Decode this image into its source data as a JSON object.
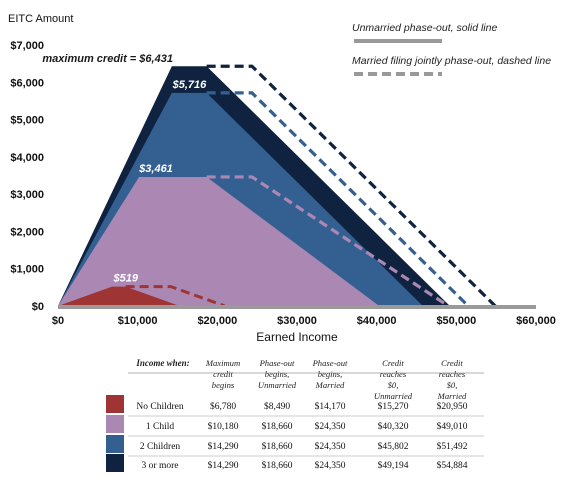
{
  "chart_data": {
    "type": "area",
    "ylabel": "EITC Amount",
    "xlabel": "Earned Income",
    "xlim": [
      0,
      60000
    ],
    "ylim": [
      0,
      7000
    ],
    "x_ticks": [
      0,
      10000,
      20000,
      30000,
      40000,
      50000,
      60000
    ],
    "x_tick_labels": [
      "$0",
      "$10,000",
      "$20,000",
      "$30,000",
      "$40,000",
      "$50,000",
      "$60,000"
    ],
    "y_ticks": [
      0,
      1000,
      2000,
      3000,
      4000,
      5000,
      6000,
      7000
    ],
    "y_tick_labels": [
      "$0",
      "$1,000",
      "$2,000",
      "$3,000",
      "$4,000",
      "$5,000",
      "$6,000",
      "$7,000"
    ],
    "grid": false,
    "legend": {
      "placement": "top-right",
      "items": [
        {
          "label": "Unmarried phase-out, solid line",
          "style": "solid",
          "color": "#999999"
        },
        {
          "label": "Married filing jointly phase-out, dashed line",
          "style": "dashed",
          "color": "#999999"
        }
      ]
    },
    "annotations": [
      {
        "text": "maximum credit = $6,431",
        "x": 10000,
        "y": 6431,
        "style": "dark"
      },
      {
        "text": "$5,716",
        "x": 16500,
        "y": 5716,
        "style": "light"
      },
      {
        "text": "$3,461",
        "x": 12300,
        "y": 3461,
        "style": "light"
      },
      {
        "text": "$519",
        "x": 8500,
        "y": 519,
        "style": "light"
      }
    ],
    "series": [
      {
        "name": "3 or more",
        "color": "#0f2240",
        "max_credit": 6431,
        "unmarried": [
          [
            0,
            0
          ],
          [
            14290,
            6431
          ],
          [
            18660,
            6431
          ],
          [
            49194,
            0
          ]
        ],
        "married_phaseout": [
          [
            18660,
            6431
          ],
          [
            24350,
            6431
          ],
          [
            54884,
            0
          ]
        ]
      },
      {
        "name": "2 Children",
        "color": "#345f91",
        "max_credit": 5716,
        "unmarried": [
          [
            0,
            0
          ],
          [
            14290,
            5716
          ],
          [
            18660,
            5716
          ],
          [
            45802,
            0
          ]
        ],
        "married_phaseout": [
          [
            18660,
            5716
          ],
          [
            24350,
            5716
          ],
          [
            51492,
            0
          ]
        ]
      },
      {
        "name": "1 Child",
        "color": "#ab88b4",
        "max_credit": 3461,
        "unmarried": [
          [
            0,
            0
          ],
          [
            10180,
            3461
          ],
          [
            18660,
            3461
          ],
          [
            40320,
            0
          ]
        ],
        "married_phaseout": [
          [
            18660,
            3461
          ],
          [
            24350,
            3461
          ],
          [
            49010,
            0
          ]
        ]
      },
      {
        "name": "No Children",
        "color": "#9e3433",
        "max_credit": 519,
        "unmarried": [
          [
            0,
            0
          ],
          [
            6780,
            519
          ],
          [
            8490,
            519
          ],
          [
            15270,
            0
          ]
        ],
        "married_phaseout": [
          [
            8490,
            519
          ],
          [
            14170,
            519
          ],
          [
            20950,
            0
          ]
        ]
      }
    ]
  },
  "table": {
    "header": [
      "Income when:",
      "Maximum credit begins",
      "Phase-out begins, Unmarried",
      "Phase-out begins, Married",
      "Credit reaches $0, Unmarried",
      "Credit reaches $0, Married"
    ],
    "rows": [
      {
        "label": "No Children",
        "color": "#9e3433",
        "cells": [
          "$6,780",
          "$8,490",
          "$14,170",
          "$15,270",
          "$20,950"
        ]
      },
      {
        "label": "1 Child",
        "color": "#ab88b4",
        "cells": [
          "$10,180",
          "$18,660",
          "$24,350",
          "$40,320",
          "$49,010"
        ]
      },
      {
        "label": "2 Children",
        "color": "#345f91",
        "cells": [
          "$14,290",
          "$18,660",
          "$24,350",
          "$45,802",
          "$51,492"
        ]
      },
      {
        "label": "3 or more",
        "color": "#0f2240",
        "cells": [
          "$14,290",
          "$18,660",
          "$24,350",
          "$49,194",
          "$54,884"
        ]
      }
    ]
  }
}
